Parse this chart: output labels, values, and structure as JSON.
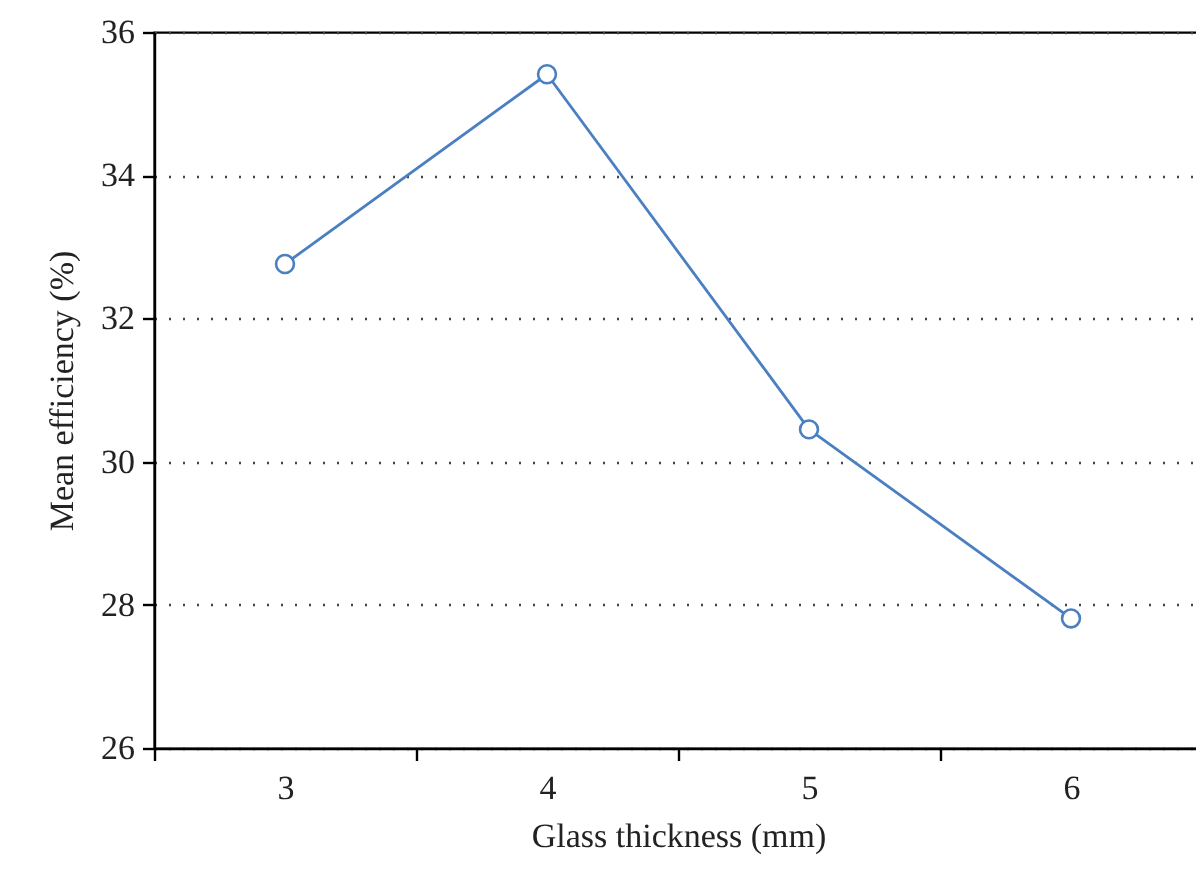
{
  "chart_data": {
    "type": "line",
    "xlabel": "Glass thickness (mm)",
    "ylabel": "Mean efficiency (%)",
    "categories": [
      "3",
      "4",
      "5",
      "6"
    ],
    "series": [
      {
        "color": "#4a7fc1",
        "values": [
          32.76,
          35.41,
          30.45,
          27.81
        ]
      }
    ],
    "ylim": [
      26,
      36
    ],
    "yticks": [
      26,
      28,
      30,
      32,
      34,
      36
    ],
    "grid": "y",
    "marker": "circle",
    "line_style": "solid"
  }
}
